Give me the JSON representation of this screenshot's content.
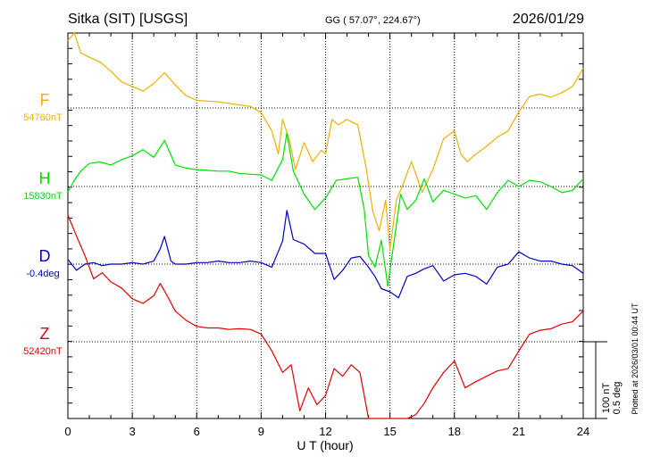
{
  "header": {
    "station": "Sitka (SIT)  [USGS]",
    "coords": "GG ( 57.07°, 224.67°)",
    "date": "2026/01/29"
  },
  "footer_note": "Plotted at 2026/03/01 00:44 UT",
  "colors": {
    "F": "#f0b000",
    "H": "#00e000",
    "D": "#0000cc",
    "Z": "#e00000"
  },
  "chart_data": {
    "type": "line",
    "title": "Sitka (SIT)  [USGS]",
    "xlabel": "U T (hour)",
    "ylabel": "",
    "xlim": [
      0,
      24
    ],
    "x_ticks": [
      0,
      3,
      6,
      9,
      12,
      15,
      18,
      21,
      24
    ],
    "grid": true,
    "scale_bar": {
      "label_nT": "100 nT",
      "label_deg": "0.5 deg",
      "nT": 100,
      "deg": 0.5
    },
    "series": [
      {
        "name": "F",
        "baseline_label": "54760nT",
        "baseline": 54760,
        "unit": "nT",
        "points": [
          [
            0,
            54848
          ],
          [
            0.3,
            54858
          ],
          [
            0.6,
            54832
          ],
          [
            1.0,
            54826
          ],
          [
            1.5,
            54820
          ],
          [
            2.0,
            54808
          ],
          [
            2.5,
            54794
          ],
          [
            3.0,
            54788
          ],
          [
            3.5,
            54782
          ],
          [
            4.0,
            54792
          ],
          [
            4.5,
            54806
          ],
          [
            5.0,
            54790
          ],
          [
            5.5,
            54776
          ],
          [
            6.0,
            54770
          ],
          [
            6.5,
            54769
          ],
          [
            7.0,
            54768
          ],
          [
            7.5,
            54766
          ],
          [
            8.0,
            54764
          ],
          [
            8.5,
            54762
          ],
          [
            9.0,
            54754
          ],
          [
            9.5,
            54730
          ],
          [
            9.8,
            54700
          ],
          [
            10.0,
            54745
          ],
          [
            10.3,
            54720
          ],
          [
            10.6,
            54680
          ],
          [
            11.0,
            54715
          ],
          [
            11.4,
            54690
          ],
          [
            11.8,
            54705
          ],
          [
            12.0,
            54700
          ],
          [
            12.3,
            54745
          ],
          [
            12.6,
            54738
          ],
          [
            13.0,
            54745
          ],
          [
            13.5,
            54738
          ],
          [
            13.9,
            54680
          ],
          [
            14.2,
            54625
          ],
          [
            14.5,
            54600
          ],
          [
            14.8,
            54640
          ],
          [
            15.0,
            54575
          ],
          [
            15.3,
            54640
          ],
          [
            15.6,
            54660
          ],
          [
            16.0,
            54690
          ],
          [
            16.5,
            54650
          ],
          [
            17.0,
            54680
          ],
          [
            17.5,
            54720
          ],
          [
            18.0,
            54730
          ],
          [
            18.3,
            54700
          ],
          [
            18.6,
            54690
          ],
          [
            19.0,
            54700
          ],
          [
            19.5,
            54710
          ],
          [
            20.0,
            54722
          ],
          [
            20.5,
            54730
          ],
          [
            21.0,
            54755
          ],
          [
            21.5,
            54775
          ],
          [
            22.0,
            54778
          ],
          [
            22.5,
            54774
          ],
          [
            23.0,
            54780
          ],
          [
            23.5,
            54788
          ],
          [
            24.0,
            54812
          ]
        ]
      },
      {
        "name": "H",
        "baseline_label": "15830nT",
        "baseline": 15830,
        "unit": "nT",
        "points": [
          [
            0,
            15823
          ],
          [
            0.3,
            15838
          ],
          [
            0.6,
            15850
          ],
          [
            1.0,
            15860
          ],
          [
            1.5,
            15862
          ],
          [
            2.0,
            15858
          ],
          [
            2.5,
            15865
          ],
          [
            3.0,
            15870
          ],
          [
            3.5,
            15878
          ],
          [
            4.0,
            15868
          ],
          [
            4.5,
            15890
          ],
          [
            5.0,
            15858
          ],
          [
            5.5,
            15854
          ],
          [
            6.0,
            15852
          ],
          [
            6.5,
            15851
          ],
          [
            7.0,
            15850
          ],
          [
            7.5,
            15850
          ],
          [
            8.0,
            15847
          ],
          [
            8.5,
            15846
          ],
          [
            9.0,
            15845
          ],
          [
            9.5,
            15838
          ],
          [
            10.0,
            15865
          ],
          [
            10.2,
            15900
          ],
          [
            10.5,
            15850
          ],
          [
            11.0,
            15820
          ],
          [
            11.5,
            15800
          ],
          [
            12.0,
            15815
          ],
          [
            12.5,
            15838
          ],
          [
            13.0,
            15840
          ],
          [
            13.5,
            15842
          ],
          [
            13.8,
            15800
          ],
          [
            14.0,
            15740
          ],
          [
            14.3,
            15725
          ],
          [
            14.6,
            15760
          ],
          [
            14.9,
            15700
          ],
          [
            15.2,
            15760
          ],
          [
            15.5,
            15820
          ],
          [
            15.8,
            15800
          ],
          [
            16.2,
            15812
          ],
          [
            16.6,
            15840
          ],
          [
            17.0,
            15810
          ],
          [
            17.5,
            15825
          ],
          [
            18.0,
            15820
          ],
          [
            18.5,
            15815
          ],
          [
            19.0,
            15818
          ],
          [
            19.5,
            15800
          ],
          [
            20.0,
            15822
          ],
          [
            20.5,
            15838
          ],
          [
            21.0,
            15830
          ],
          [
            21.5,
            15838
          ],
          [
            22.0,
            15836
          ],
          [
            22.5,
            15830
          ],
          [
            23.0,
            15822
          ],
          [
            23.5,
            15825
          ],
          [
            24.0,
            15840
          ]
        ]
      },
      {
        "name": "D",
        "baseline_label": "-0.4deg",
        "baseline": -0.4,
        "unit": "deg",
        "points": [
          [
            0,
            -0.37
          ],
          [
            0.4,
            -0.44
          ],
          [
            0.8,
            -0.4
          ],
          [
            1.2,
            -0.39
          ],
          [
            1.6,
            -0.41
          ],
          [
            2.0,
            -0.4
          ],
          [
            2.5,
            -0.4
          ],
          [
            3.0,
            -0.39
          ],
          [
            3.5,
            -0.4
          ],
          [
            4.0,
            -0.38
          ],
          [
            4.3,
            -0.3
          ],
          [
            4.5,
            -0.22
          ],
          [
            4.8,
            -0.38
          ],
          [
            5.0,
            -0.4
          ],
          [
            5.5,
            -0.4
          ],
          [
            6.0,
            -0.39
          ],
          [
            6.5,
            -0.39
          ],
          [
            7.0,
            -0.38
          ],
          [
            7.5,
            -0.39
          ],
          [
            8.0,
            -0.39
          ],
          [
            8.5,
            -0.38
          ],
          [
            9.0,
            -0.39
          ],
          [
            9.5,
            -0.42
          ],
          [
            10.0,
            -0.25
          ],
          [
            10.2,
            -0.05
          ],
          [
            10.5,
            -0.24
          ],
          [
            11.0,
            -0.27
          ],
          [
            11.5,
            -0.33
          ],
          [
            12.0,
            -0.33
          ],
          [
            12.4,
            -0.5
          ],
          [
            12.8,
            -0.44
          ],
          [
            13.2,
            -0.36
          ],
          [
            13.6,
            -0.35
          ],
          [
            14.0,
            -0.42
          ],
          [
            14.3,
            -0.48
          ],
          [
            14.6,
            -0.56
          ],
          [
            15.0,
            -0.58
          ],
          [
            15.4,
            -0.62
          ],
          [
            15.8,
            -0.48
          ],
          [
            16.2,
            -0.46
          ],
          [
            16.6,
            -0.43
          ],
          [
            17.0,
            -0.41
          ],
          [
            17.5,
            -0.51
          ],
          [
            18.0,
            -0.47
          ],
          [
            18.5,
            -0.46
          ],
          [
            19.0,
            -0.48
          ],
          [
            19.5,
            -0.53
          ],
          [
            20.0,
            -0.42
          ],
          [
            20.5,
            -0.4
          ],
          [
            21.0,
            -0.32
          ],
          [
            21.5,
            -0.36
          ],
          [
            22.0,
            -0.38
          ],
          [
            22.5,
            -0.38
          ],
          [
            23.0,
            -0.4
          ],
          [
            23.5,
            -0.41
          ],
          [
            24.0,
            -0.46
          ]
        ]
      },
      {
        "name": "Z",
        "baseline_label": "52420nT",
        "baseline": 52420,
        "unit": "nT",
        "points": [
          [
            0,
            52585
          ],
          [
            0.4,
            52558
          ],
          [
            0.8,
            52532
          ],
          [
            1.2,
            52502
          ],
          [
            1.6,
            52510
          ],
          [
            2.0,
            52498
          ],
          [
            2.5,
            52490
          ],
          [
            3.0,
            52476
          ],
          [
            3.5,
            52470
          ],
          [
            4.0,
            52480
          ],
          [
            4.3,
            52496
          ],
          [
            4.7,
            52476
          ],
          [
            5.0,
            52460
          ],
          [
            5.5,
            52448
          ],
          [
            6.0,
            52440
          ],
          [
            6.5,
            52438
          ],
          [
            7.0,
            52438
          ],
          [
            7.5,
            52436
          ],
          [
            8.0,
            52437
          ],
          [
            8.5,
            52436
          ],
          [
            9.0,
            52430
          ],
          [
            9.5,
            52408
          ],
          [
            10.0,
            52380
          ],
          [
            10.4,
            52390
          ],
          [
            10.8,
            52330
          ],
          [
            11.2,
            52360
          ],
          [
            11.6,
            52338
          ],
          [
            12.0,
            52350
          ],
          [
            12.4,
            52385
          ],
          [
            12.8,
            52375
          ],
          [
            13.2,
            52390
          ],
          [
            13.6,
            52380
          ],
          [
            14.0,
            52320
          ],
          [
            14.3,
            52275
          ],
          [
            14.6,
            52250
          ],
          [
            14.9,
            52280
          ],
          [
            15.2,
            52240
          ],
          [
            15.5,
            52290
          ],
          [
            15.8,
            52315
          ],
          [
            16.2,
            52325
          ],
          [
            16.6,
            52340
          ],
          [
            17.0,
            52360
          ],
          [
            17.5,
            52380
          ],
          [
            18.0,
            52395
          ],
          [
            18.5,
            52360
          ],
          [
            19.0,
            52368
          ],
          [
            19.5,
            52375
          ],
          [
            20.0,
            52382
          ],
          [
            20.5,
            52385
          ],
          [
            21.0,
            52408
          ],
          [
            21.5,
            52430
          ],
          [
            22.0,
            52435
          ],
          [
            22.5,
            52437
          ],
          [
            23.0,
            52443
          ],
          [
            23.5,
            52446
          ],
          [
            24.0,
            52460
          ]
        ]
      }
    ]
  }
}
